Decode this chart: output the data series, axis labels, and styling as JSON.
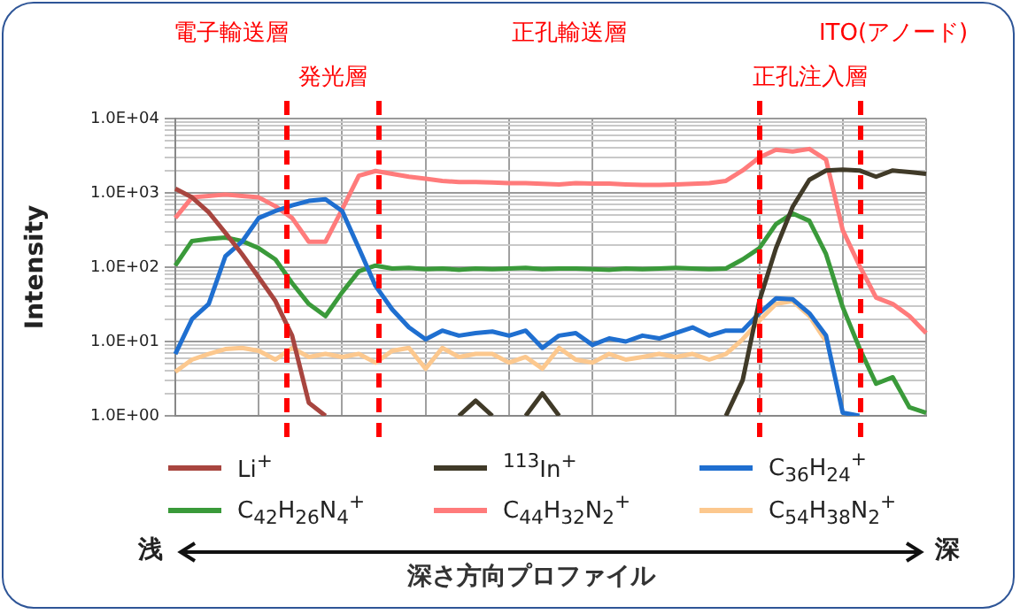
{
  "chart_data": {
    "type": "line",
    "ylabel": "Intensity",
    "annotations": [
      "電子輸送層",
      "発光層",
      "正孔輸送層",
      "正孔注入層",
      "ITO(アノード)",
      "浅",
      "深",
      "深さ方向プロファイル"
    ],
    "categories": [
      null,
      null,
      null,
      null,
      null,
      null,
      null,
      null,
      null,
      null,
      null,
      null,
      null,
      null,
      null,
      null,
      null,
      null,
      null,
      null,
      null,
      null,
      null,
      null,
      null,
      null,
      null,
      null,
      null,
      null,
      null,
      null,
      null,
      null,
      null,
      null,
      null,
      null,
      null,
      null,
      null,
      null,
      null,
      null,
      null,
      null
    ],
    "log": true,
    "ylim": [
      1,
      10000
    ],
    "yticks": [
      {
        "value": 1,
        "label": "1.0E+00"
      },
      {
        "value": 2,
        "label": null
      },
      {
        "value": 3,
        "label": null
      },
      {
        "value": 4,
        "label": null
      },
      {
        "value": 5,
        "label": null
      },
      {
        "value": 6,
        "label": null
      },
      {
        "value": 7,
        "label": null
      },
      {
        "value": 8,
        "label": null
      },
      {
        "value": 9,
        "label": null
      },
      {
        "value": 10,
        "label": "1.0E+01"
      },
      {
        "value": 20,
        "label": null
      },
      {
        "value": 30,
        "label": null
      },
      {
        "value": 40,
        "label": null
      },
      {
        "value": 50,
        "label": null
      },
      {
        "value": 60,
        "label": null
      },
      {
        "value": 70,
        "label": null
      },
      {
        "value": 80,
        "label": null
      },
      {
        "value": 90,
        "label": null
      },
      {
        "value": 100,
        "label": "1.0E+02"
      },
      {
        "value": 200,
        "label": null
      },
      {
        "value": 300,
        "label": null
      },
      {
        "value": 400,
        "label": null
      },
      {
        "value": 500,
        "label": null
      },
      {
        "value": 600,
        "label": null
      },
      {
        "value": 700,
        "label": null
      },
      {
        "value": 800,
        "label": null
      },
      {
        "value": 900,
        "label": null
      },
      {
        "value": 1000,
        "label": "1.0E+03"
      },
      {
        "value": 2000,
        "label": null
      },
      {
        "value": 3000,
        "label": null
      },
      {
        "value": 4000,
        "label": null
      },
      {
        "value": 5000,
        "label": null
      },
      {
        "value": 6000,
        "label": null
      },
      {
        "value": 7000,
        "label": null
      },
      {
        "value": 8000,
        "label": null
      },
      {
        "value": 9000,
        "label": null
      },
      {
        "value": 10000,
        "label": "1.0E+04"
      }
    ],
    "grid": true,
    "legend": "bottom",
    "tick_labels": "y",
    "series": [
      {
        "name": "Li$^{+}$",
        "color": "#a8453f",
        "values": [
          1140,
          870,
          550,
          290,
          150,
          73,
          35,
          12,
          1.5,
          1,
          null,
          null,
          null,
          null,
          null,
          null,
          null,
          null,
          null,
          null,
          null,
          null,
          null,
          null,
          null,
          null,
          null,
          null,
          null,
          null,
          null,
          null,
          null,
          null,
          null,
          null,
          null,
          null,
          null,
          null,
          null,
          null,
          null,
          null,
          null,
          null
        ]
      },
      {
        "name": "$^{113}$In$^{+}$",
        "color": "#403a28",
        "values": [
          null,
          null,
          null,
          null,
          null,
          null,
          null,
          null,
          null,
          null,
          null,
          null,
          null,
          null,
          null,
          null,
          null,
          1,
          1.6,
          1,
          null,
          1,
          2,
          1,
          null,
          null,
          null,
          null,
          null,
          null,
          null,
          null,
          null,
          1,
          3,
          35,
          180,
          650,
          1500,
          2000,
          2050,
          2000,
          1650,
          2000,
          1900,
          1800
        ]
      },
      {
        "name": "C$_{36}$H$_{24}$$^{+}$",
        "color": "#1f6fd0",
        "values": [
          6.8,
          20,
          32,
          140,
          220,
          460,
          570,
          680,
          780,
          820,
          570,
          180,
          56,
          27,
          15.5,
          10.7,
          14,
          12,
          13,
          13.6,
          12,
          14,
          8.2,
          12,
          13,
          9,
          11,
          10,
          12,
          11,
          13,
          15.5,
          12,
          14,
          14,
          24,
          38,
          37,
          24,
          12,
          1.1,
          1,
          null,
          null,
          null,
          null
        ]
      },
      {
        "name": "C$_{42}$H$_{26}$N$_{4}$$^{+}$",
        "color": "#3a9a3a",
        "values": [
          105,
          225,
          240,
          250,
          225,
          180,
          127,
          61,
          32,
          22,
          46,
          88,
          105,
          96,
          98,
          94,
          96,
          92,
          96,
          94,
          96,
          98,
          94,
          96,
          96,
          94,
          92,
          96,
          94,
          96,
          98,
          96,
          94,
          96,
          127,
          180,
          380,
          530,
          420,
          150,
          29,
          8.2,
          2.7,
          3.3,
          1.3,
          1.1
        ]
      },
      {
        "name": "C$_{44}$H$_{32}$N$_{2}$$^{+}$",
        "color": "#ff7b7b",
        "values": [
          460,
          870,
          910,
          950,
          910,
          870,
          660,
          460,
          220,
          220,
          600,
          1700,
          1970,
          1800,
          1650,
          1550,
          1450,
          1400,
          1400,
          1380,
          1350,
          1350,
          1320,
          1300,
          1350,
          1330,
          1330,
          1300,
          1280,
          1280,
          1300,
          1320,
          1350,
          1450,
          2000,
          3000,
          3800,
          3600,
          3900,
          2800,
          315,
          105,
          39,
          32,
          22,
          13
        ]
      },
      {
        "name": "C$_{54}$H$_{38}$N$_{2}$$^{+}$",
        "color": "#fcc88e",
        "values": [
          3.9,
          5.7,
          6.8,
          7.9,
          8.2,
          7.5,
          5.7,
          8.2,
          6.2,
          6.8,
          6.2,
          6.8,
          5.2,
          7.5,
          8.2,
          4.3,
          8.2,
          6.2,
          6.8,
          6.8,
          5.2,
          6.2,
          4.3,
          8.2,
          5.7,
          5.2,
          6.8,
          5.7,
          6.2,
          6.8,
          6.2,
          6.8,
          5.7,
          6.8,
          10.7,
          19,
          32,
          35,
          22,
          10,
          null,
          null,
          null,
          null,
          null,
          null
        ]
      }
    ]
  }
}
